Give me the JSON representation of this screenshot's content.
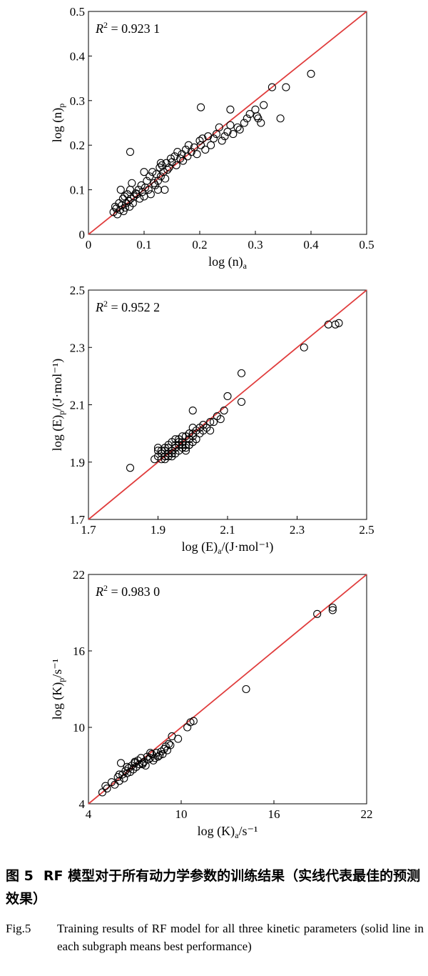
{
  "chart_data": [
    {
      "type": "scatter",
      "xlabel": "log (n)a",
      "ylabel": "log (n)p",
      "annotation": "R² = 0.923 1",
      "xlim": [
        0,
        0.5
      ],
      "ylim": [
        0,
        0.5
      ],
      "xticks": [
        "0",
        "0.1",
        "0.2",
        "0.3",
        "0.4",
        "0.5"
      ],
      "yticks": [
        "0",
        "0.1",
        "0.2",
        "0.3",
        "0.4",
        "0.5"
      ],
      "line": [
        [
          0,
          0
        ],
        [
          0.5,
          0.5
        ]
      ],
      "x": [
        0.045,
        0.048,
        0.05,
        0.052,
        0.055,
        0.057,
        0.058,
        0.06,
        0.062,
        0.063,
        0.065,
        0.066,
        0.068,
        0.07,
        0.072,
        0.074,
        0.075,
        0.076,
        0.078,
        0.08,
        0.082,
        0.085,
        0.087,
        0.09,
        0.092,
        0.095,
        0.097,
        0.1,
        0.102,
        0.105,
        0.108,
        0.11,
        0.112,
        0.115,
        0.118,
        0.12,
        0.122,
        0.125,
        0.128,
        0.13,
        0.132,
        0.135,
        0.138,
        0.14,
        0.142,
        0.145,
        0.148,
        0.15,
        0.155,
        0.158,
        0.16,
        0.165,
        0.168,
        0.17,
        0.175,
        0.178,
        0.18,
        0.185,
        0.19,
        0.195,
        0.2,
        0.202,
        0.205,
        0.21,
        0.215,
        0.22,
        0.225,
        0.23,
        0.235,
        0.24,
        0.245,
        0.25,
        0.255,
        0.26,
        0.268,
        0.272,
        0.28,
        0.285,
        0.29,
        0.3,
        0.303,
        0.305,
        0.31,
        0.315,
        0.33,
        0.345,
        0.355,
        0.4,
        0.075,
        0.202,
        0.255,
        0.1,
        0.125,
        0.137,
        0.13
      ],
      "y": [
        0.05,
        0.062,
        0.058,
        0.045,
        0.07,
        0.055,
        0.1,
        0.065,
        0.08,
        0.052,
        0.085,
        0.06,
        0.07,
        0.09,
        0.075,
        0.062,
        0.1,
        0.08,
        0.115,
        0.07,
        0.085,
        0.092,
        0.09,
        0.1,
        0.08,
        0.11,
        0.095,
        0.085,
        0.105,
        0.12,
        0.1,
        0.13,
        0.09,
        0.14,
        0.115,
        0.11,
        0.135,
        0.12,
        0.15,
        0.13,
        0.155,
        0.14,
        0.125,
        0.16,
        0.145,
        0.15,
        0.17,
        0.162,
        0.175,
        0.155,
        0.185,
        0.17,
        0.18,
        0.165,
        0.19,
        0.175,
        0.2,
        0.185,
        0.195,
        0.18,
        0.21,
        0.2,
        0.215,
        0.19,
        0.22,
        0.2,
        0.215,
        0.225,
        0.24,
        0.21,
        0.22,
        0.23,
        0.245,
        0.225,
        0.24,
        0.235,
        0.25,
        0.26,
        0.27,
        0.28,
        0.265,
        0.26,
        0.25,
        0.29,
        0.33,
        0.26,
        0.33,
        0.36,
        0.185,
        0.285,
        0.28,
        0.14,
        0.1,
        0.1,
        0.16
      ]
    },
    {
      "type": "scatter",
      "xlabel": "log (E)a/(J·mol⁻¹)",
      "ylabel": "log (E)p/(J·mol⁻¹)",
      "annotation": "R² = 0.952 2",
      "xlim": [
        1.7,
        2.5
      ],
      "ylim": [
        1.7,
        2.5
      ],
      "xticks": [
        "1.7",
        "1.9",
        "2.1",
        "2.3",
        "2.5"
      ],
      "yticks": [
        "1.7",
        "1.9",
        "2.1",
        "2.3",
        "2.5"
      ],
      "line": [
        [
          1.7,
          1.7
        ],
        [
          2.5,
          2.5
        ]
      ],
      "x": [
        1.82,
        1.89,
        1.9,
        1.9,
        1.91,
        1.91,
        1.92,
        1.92,
        1.92,
        1.93,
        1.93,
        1.93,
        1.94,
        1.94,
        1.94,
        1.95,
        1.95,
        1.95,
        1.96,
        1.96,
        1.96,
        1.97,
        1.97,
        1.97,
        1.98,
        1.98,
        1.98,
        1.99,
        1.99,
        1.99,
        2.0,
        2.0,
        2.0,
        2.01,
        2.01,
        2.02,
        2.02,
        2.03,
        2.03,
        2.04,
        2.05,
        2.05,
        2.06,
        2.07,
        2.08,
        2.09,
        2.1,
        2.14,
        2.14,
        2.32,
        2.39,
        2.41,
        2.42,
        1.9,
        1.91,
        1.92,
        1.93,
        1.94,
        1.95,
        1.96,
        1.97,
        1.98,
        1.99,
        2.0,
        2.0,
        1.99,
        1.97,
        1.96,
        1.95
      ],
      "y": [
        1.88,
        1.91,
        1.92,
        1.94,
        1.91,
        1.93,
        1.92,
        1.94,
        1.95,
        1.92,
        1.93,
        1.96,
        1.92,
        1.94,
        1.97,
        1.93,
        1.95,
        1.96,
        1.94,
        1.96,
        1.98,
        1.95,
        1.96,
        1.97,
        1.94,
        1.96,
        1.99,
        1.96,
        1.98,
        2.0,
        1.97,
        1.99,
        2.08,
        1.98,
        2.01,
        2.0,
        2.02,
        2.01,
        2.03,
        2.02,
        2.01,
        2.04,
        2.04,
        2.06,
        2.05,
        2.08,
        2.13,
        2.11,
        2.21,
        2.3,
        2.38,
        2.38,
        2.385,
        1.95,
        1.94,
        1.91,
        1.95,
        1.93,
        1.98,
        1.97,
        1.95,
        1.95,
        1.96,
        2.0,
        2.02,
        2.0,
        1.99,
        1.96,
        1.95
      ]
    },
    {
      "type": "scatter",
      "xlabel": "log (K)a/s⁻¹",
      "ylabel": "log (K)p/s⁻¹",
      "annotation": "R² = 0.983 0",
      "xlim": [
        4,
        22
      ],
      "ylim": [
        4,
        22
      ],
      "xticks": [
        "4",
        "10",
        "16",
        "22"
      ],
      "yticks": [
        "4",
        "10",
        "16",
        "22"
      ],
      "line": [
        [
          4,
          4
        ],
        [
          22,
          22
        ]
      ],
      "x": [
        4.9,
        5.1,
        5.2,
        5.5,
        5.7,
        5.9,
        6.0,
        6.1,
        6.2,
        6.3,
        6.4,
        6.5,
        6.6,
        6.7,
        6.8,
        6.9,
        7.0,
        7.1,
        7.2,
        7.3,
        7.4,
        7.5,
        7.6,
        7.7,
        7.8,
        7.9,
        8.0,
        8.1,
        8.2,
        8.3,
        8.4,
        8.5,
        8.6,
        8.7,
        8.8,
        8.9,
        9.0,
        9.1,
        9.2,
        9.3,
        9.4,
        9.8,
        10.4,
        10.6,
        10.8,
        14.2,
        18.8,
        19.8,
        19.8,
        6.0,
        6.5,
        7.0,
        7.5,
        8.0
      ],
      "y": [
        4.9,
        5.4,
        5.2,
        5.7,
        5.5,
        6.1,
        5.8,
        7.2,
        6.3,
        6.0,
        6.6,
        6.4,
        6.8,
        6.5,
        7.0,
        6.7,
        7.2,
        6.9,
        7.4,
        7.1,
        7.6,
        7.2,
        7.3,
        7.0,
        7.7,
        7.5,
        7.6,
        7.9,
        7.4,
        7.6,
        8.0,
        7.7,
        7.8,
        8.1,
        7.9,
        8.3,
        8.5,
        8.2,
        8.7,
        8.6,
        9.3,
        9.1,
        10.0,
        10.4,
        10.5,
        13.0,
        18.9,
        19.2,
        19.4,
        6.3,
        6.9,
        7.3,
        7.1,
        8.0
      ]
    }
  ],
  "caption": {
    "cn_label": "图 5",
    "cn_text": "RF 模型对于所有动力学参数的训练结果（实线代表最佳的预测效果）",
    "en_label": "Fig.5",
    "en_text": "Training results of RF model for all three kinetic parameters (solid line in each subgraph means best performance)"
  },
  "colors": {
    "fit_line": "#e03c3c",
    "marker": "#000000",
    "axis": "#000000"
  }
}
